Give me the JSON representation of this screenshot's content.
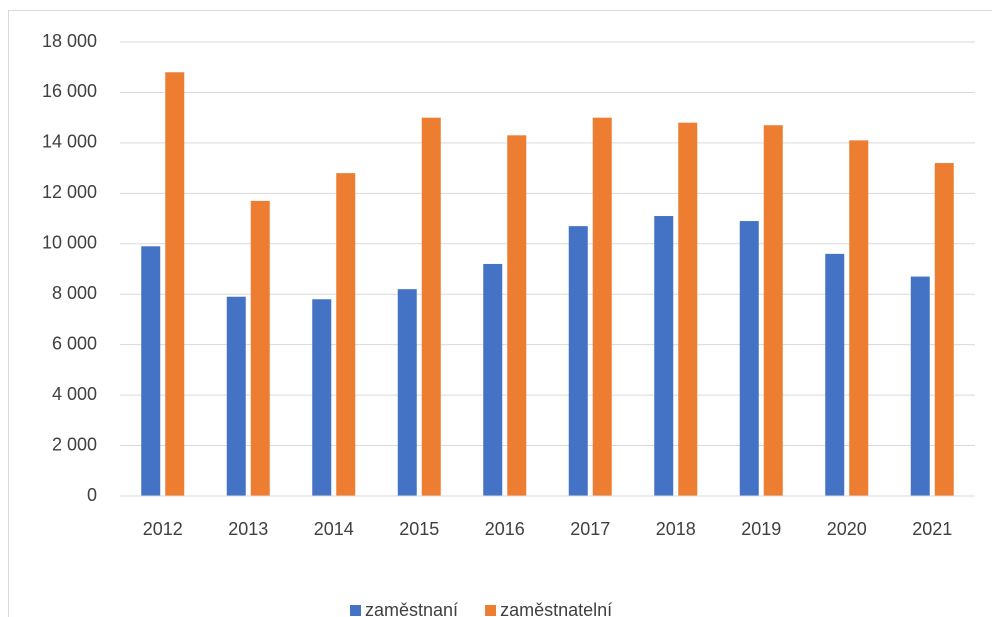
{
  "chart_data": {
    "type": "bar",
    "categories": [
      "2012",
      "2013",
      "2014",
      "2015",
      "2016",
      "2017",
      "2018",
      "2019",
      "2020",
      "2021"
    ],
    "series": [
      {
        "name": "zaměstnaní",
        "color": "#4472c4",
        "values": [
          9900,
          7900,
          7800,
          8200,
          9200,
          10700,
          11100,
          10900,
          9600,
          8700
        ]
      },
      {
        "name": "zaměstnatelní",
        "color": "#ed7d31",
        "values": [
          16800,
          11700,
          12800,
          15000,
          14300,
          15000,
          14800,
          14700,
          14100,
          13200
        ]
      }
    ],
    "ylim": [
      0,
      18000
    ],
    "yticks": [
      0,
      {
        "value": 2000,
        "label": "2 000"
      },
      {
        "value": 4000,
        "label": "4 000"
      },
      {
        "value": 6000,
        "label": "6 000"
      },
      {
        "value": 8000,
        "label": "8 000"
      },
      {
        "value": 10000,
        "label": "10 000"
      },
      {
        "value": 12000,
        "label": "12 000"
      },
      {
        "value": 14000,
        "label": "14 000"
      },
      {
        "value": 16000,
        "label": "16 000"
      },
      {
        "value": 18000,
        "label": "18 000"
      }
    ],
    "grid": true,
    "legend": "bottom"
  }
}
